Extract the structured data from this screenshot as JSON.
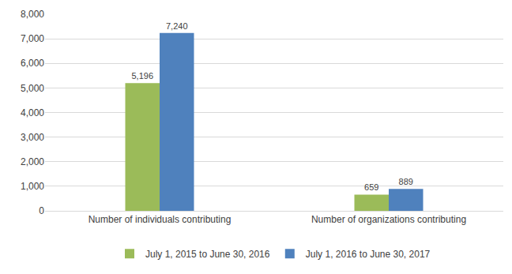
{
  "chart_data": {
    "type": "bar",
    "categories": [
      "Number of individuals contributing",
      "Number of organizations contributing"
    ],
    "series": [
      {
        "name": "July 1, 2015 to June 30, 2016",
        "color": "#9bbb59",
        "values": [
          5196,
          659
        ],
        "value_labels": [
          "5,196",
          "659"
        ]
      },
      {
        "name": "July 1, 2016 to June 30, 2017",
        "color": "#4f81bd",
        "values": [
          7240,
          889
        ],
        "value_labels": [
          "7,240",
          "889"
        ]
      }
    ],
    "ylim": [
      0,
      8000
    ],
    "yticks": [
      0,
      {
        "value": 1000,
        "label": "1,000"
      },
      {
        "value": 2000,
        "label": "2,000"
      },
      {
        "value": 3000,
        "label": "3,000"
      },
      {
        "value": 4000,
        "label": "4,000"
      },
      {
        "value": 5000,
        "label": "5,000"
      },
      {
        "value": 6000,
        "label": "6,000"
      },
      {
        "value": 7000,
        "label": "7,000"
      },
      {
        "value": 8000,
        "label": "8,000"
      }
    ],
    "grid": true,
    "data_labels": true,
    "legend": "bottom"
  }
}
